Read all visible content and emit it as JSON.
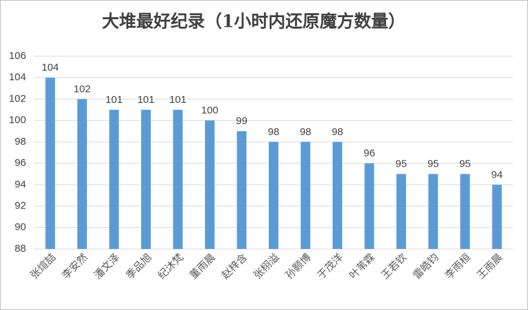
{
  "chart_data": {
    "type": "bar",
    "title": "大堆最好纪录（1小时内还原魔方数量）",
    "categories": [
      "张煊喆",
      "李安然",
      "潘文泽",
      "季品旭",
      "纪沐梵",
      "董雨晨",
      "赵梓含",
      "张栩溢",
      "孙颢博",
      "于茂洋",
      "叶苇霖",
      "王若钦",
      "雷皓钧",
      "李雨桓",
      "王雨晨"
    ],
    "values": [
      104,
      102,
      101,
      101,
      101,
      100,
      99,
      98,
      98,
      98,
      96,
      95,
      95,
      95,
      94
    ],
    "color": "#5b9bd5",
    "ylim": [
      88,
      106
    ],
    "yticks": [
      88,
      90,
      92,
      94,
      96,
      98,
      100,
      102,
      104,
      106
    ],
    "grid": true
  }
}
